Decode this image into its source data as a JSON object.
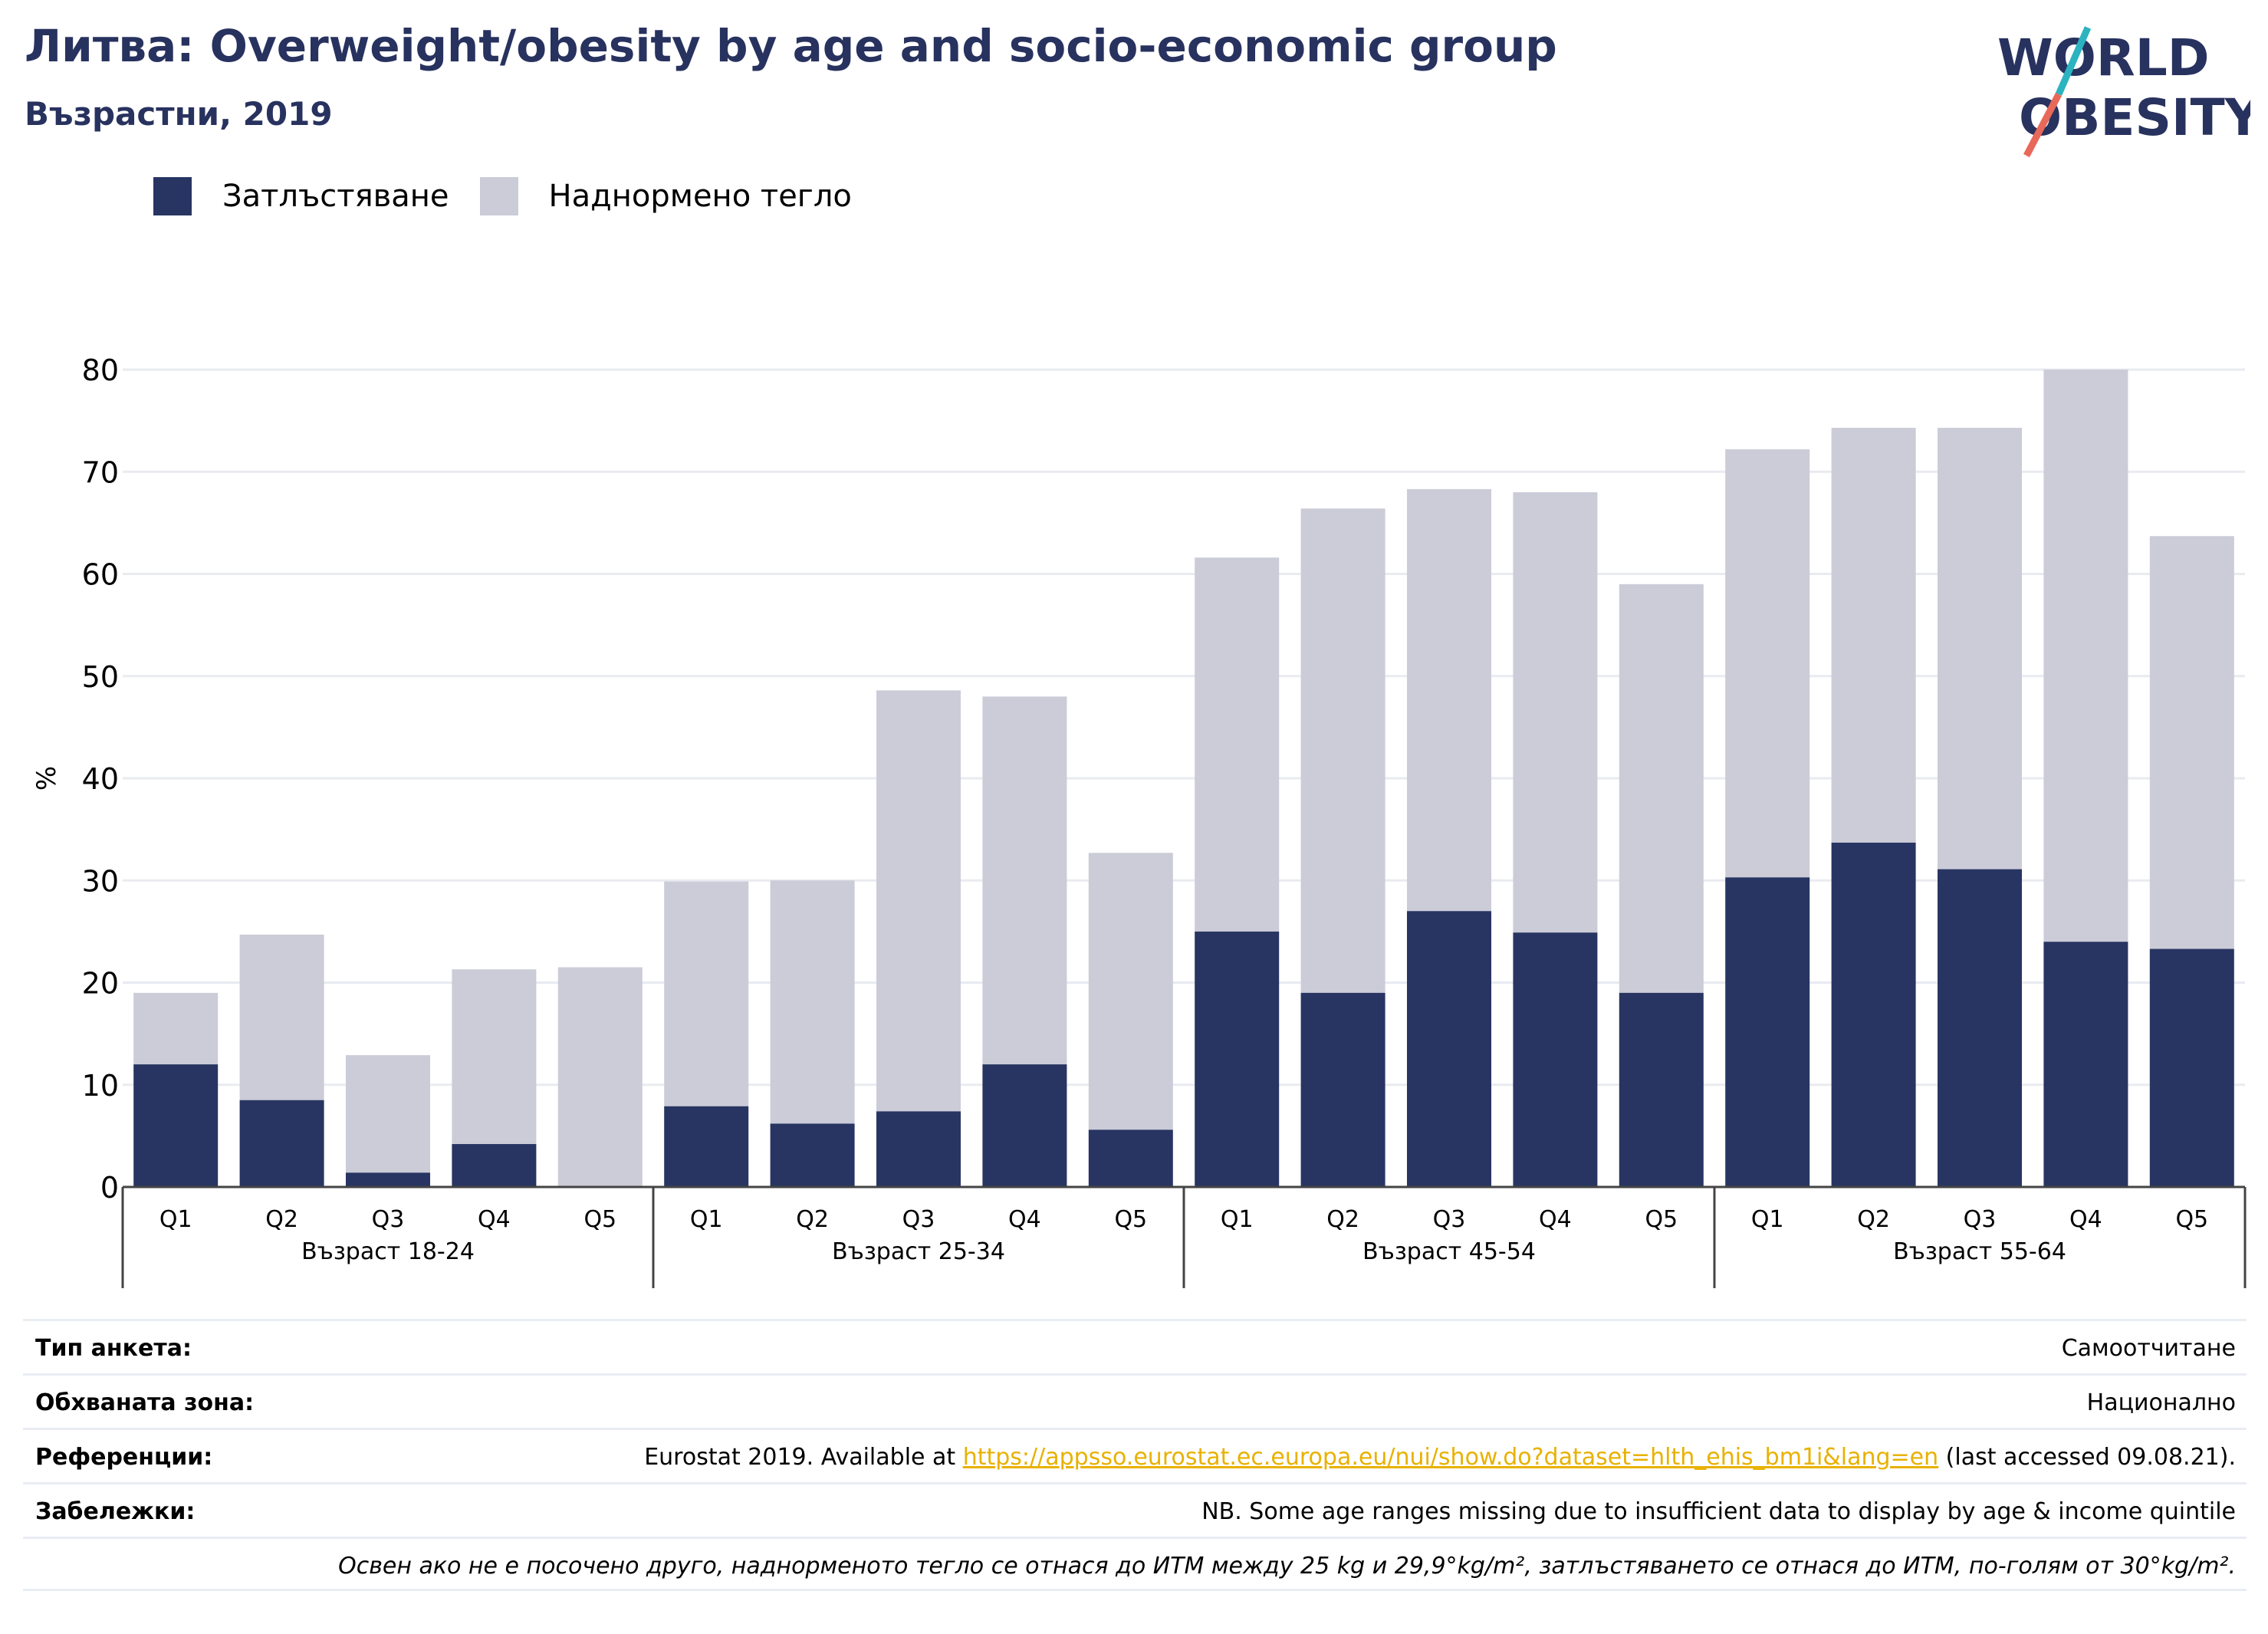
{
  "title": "Литва: Overweight/obesity by age and socio-economic group",
  "subtitle": "Възрастни, 2019",
  "logo": {
    "line1": "WORLD",
    "line2": "OBESITY",
    "icon": "world-obesity-logo"
  },
  "colors": {
    "obesity": "#283562",
    "overweight": "#cbccd8",
    "title": "#28325f",
    "link": "#e8b100",
    "logo_teal": "#2bb3c0",
    "logo_coral": "#e8685a"
  },
  "legend": [
    {
      "label": "Затлъстяване",
      "color": "#283562"
    },
    {
      "label": "Наднормено тегло",
      "color": "#cbccd8"
    }
  ],
  "chart_data": {
    "type": "bar",
    "stacked": true,
    "ylabel": "%",
    "ylim": [
      0,
      80
    ],
    "yticks": [
      0,
      10,
      20,
      30,
      40,
      50,
      60,
      70,
      80
    ],
    "grid": true,
    "legend_position": "top-left",
    "groups": [
      "Възраст 18-24",
      "Възраст 25-34",
      "Възраст 45-54",
      "Възраст 55-64"
    ],
    "categories": [
      "Q1",
      "Q2",
      "Q3",
      "Q4",
      "Q5"
    ],
    "series": [
      {
        "name": "Затлъстяване",
        "values": [
          [
            12.0,
            8.5,
            1.4,
            4.2,
            0.0
          ],
          [
            7.9,
            6.2,
            7.4,
            12.0,
            5.6
          ],
          [
            25.0,
            19.0,
            27.0,
            24.9,
            19.0
          ],
          [
            30.3,
            33.7,
            31.1,
            24.0,
            23.3
          ]
        ]
      },
      {
        "name": "Наднормено тегло",
        "values": [
          [
            7.0,
            16.2,
            11.5,
            17.1,
            21.5
          ],
          [
            22.0,
            23.8,
            41.2,
            36.0,
            27.1
          ],
          [
            36.6,
            47.4,
            41.3,
            43.1,
            40.0
          ],
          [
            41.9,
            40.6,
            43.2,
            56.0,
            40.4
          ]
        ]
      }
    ]
  },
  "info": [
    {
      "label": "Тип анкета:",
      "value": "Самоотчитане"
    },
    {
      "label": "Обхваната зона:",
      "value": "Национално"
    },
    {
      "label": "Референции:",
      "value_pre": "Eurostat 2019. Available at ",
      "link": "https://appsso.eurostat.ec.europa.eu/nui/show.do?dataset=hlth_ehis_bm1i&lang=en",
      "value_post": " (last accessed 09.08.21)."
    },
    {
      "label": "Забележки:",
      "value": "NB. Some age ranges missing due to insufficient data to display by age & income quintile"
    },
    {
      "label": "",
      "value": "Освен ако не е посочено друго, наднорменото тегло се отнася до ИТМ между 25 kg и 29,9°kg/m², затлъстяването се отнася до ИТМ, по-голям от 30°kg/m²."
    }
  ]
}
